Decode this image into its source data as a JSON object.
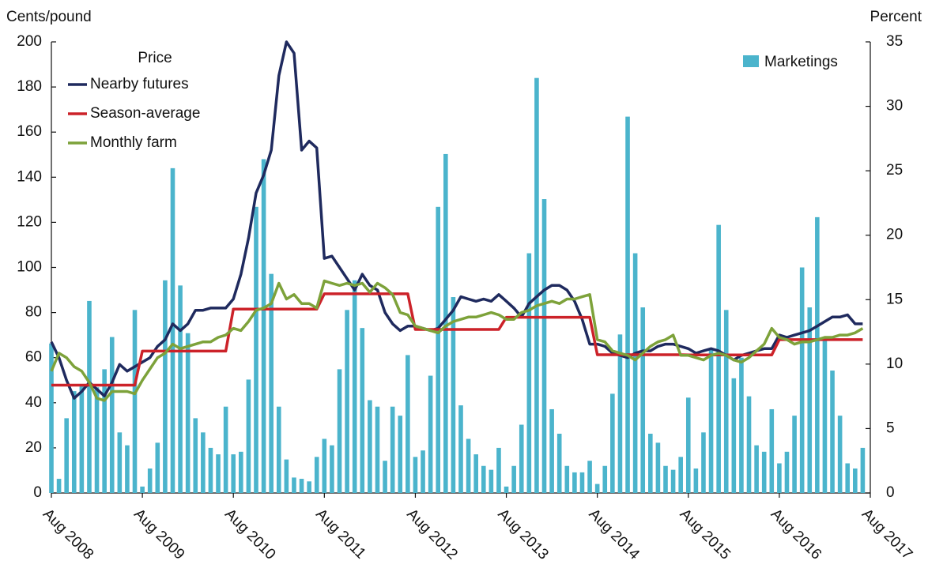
{
  "chart_data": {
    "type": "combo",
    "y_label": "Cents/pound",
    "y2_label": "Percent",
    "legend_title": "Price",
    "categories": [
      "Aug 2008",
      null,
      null,
      null,
      null,
      null,
      null,
      null,
      null,
      null,
      null,
      null,
      "Aug 2009",
      null,
      null,
      null,
      null,
      null,
      null,
      null,
      null,
      null,
      null,
      null,
      "Aug 2010",
      null,
      null,
      null,
      null,
      null,
      null,
      null,
      null,
      null,
      null,
      null,
      "Aug 2011",
      null,
      null,
      null,
      null,
      null,
      null,
      null,
      null,
      null,
      null,
      null,
      "Aug 2012",
      null,
      null,
      null,
      null,
      null,
      null,
      null,
      null,
      null,
      null,
      null,
      "Aug 2013",
      null,
      null,
      null,
      null,
      null,
      null,
      null,
      null,
      null,
      null,
      null,
      "Aug 2014",
      null,
      null,
      null,
      null,
      null,
      null,
      null,
      null,
      null,
      null,
      null,
      "Aug 2015",
      null,
      null,
      null,
      null,
      null,
      null,
      null,
      null,
      null,
      null,
      null,
      "Aug 2016",
      null,
      null,
      null,
      null,
      null,
      null,
      null,
      null,
      null,
      null,
      null,
      "Aug 2017"
    ],
    "ylim": [
      0,
      200
    ],
    "yticks": [
      0,
      20,
      40,
      60,
      80,
      100,
      120,
      140,
      160,
      180,
      200
    ],
    "y2lim": [
      0,
      35
    ],
    "y2ticks": [
      0,
      5,
      10,
      15,
      20,
      25,
      30,
      35
    ],
    "series": [
      {
        "name": "Marketings",
        "type": "bar",
        "axis": "y2",
        "color": "#4bb4cc",
        "values": [
          11.6,
          1.1,
          5.8,
          7.9,
          8.4,
          14.9,
          8.2,
          9.6,
          12.1,
          4.7,
          3.7,
          14.2,
          0.5,
          1.9,
          3.9,
          16.5,
          25.2,
          16.1,
          12.4,
          5.8,
          4.7,
          3.5,
          3.0,
          6.7,
          3.0,
          3.2,
          8.8,
          22.2,
          25.9,
          17.0,
          6.7,
          2.6,
          1.2,
          1.1,
          0.9,
          2.8,
          4.2,
          3.7,
          9.6,
          14.2,
          16.5,
          12.8,
          7.2,
          6.7,
          2.5,
          6.7,
          6.0,
          10.7,
          2.8,
          3.3,
          9.1,
          22.2,
          26.3,
          15.2,
          6.8,
          4.2,
          3.0,
          2.1,
          1.8,
          3.5,
          0.5,
          2.1,
          5.3,
          18.6,
          32.2,
          22.8,
          6.5,
          4.6,
          2.1,
          1.6,
          1.6,
          2.5,
          0.7,
          2.1,
          7.7,
          12.3,
          29.2,
          18.6,
          14.4,
          4.6,
          3.9,
          2.1,
          1.8,
          2.8,
          7.4,
          1.9,
          4.7,
          11.2,
          20.8,
          14.2,
          8.9,
          10.5,
          7.5,
          3.7,
          3.2,
          6.5,
          2.3,
          3.2,
          6.0,
          17.5,
          14.4,
          21.4,
          12.1,
          9.5,
          6.0,
          2.3,
          1.9,
          3.5,
          null
        ]
      },
      {
        "name": "Nearby futures",
        "type": "line",
        "color": "#1f2a5e",
        "values": [
          67,
          60,
          50,
          42,
          45,
          49,
          46,
          43,
          49,
          57,
          54,
          56,
          58,
          60,
          65,
          68,
          75,
          72,
          75,
          81,
          81,
          82,
          82,
          82,
          86,
          97,
          113,
          133,
          141,
          152,
          185,
          200,
          195,
          152,
          156,
          153,
          104,
          105,
          100,
          95,
          90,
          97,
          92,
          90,
          80,
          75,
          72,
          74,
          74,
          73,
          72,
          73,
          77,
          81,
          87,
          86,
          85,
          86,
          85,
          88,
          85,
          82,
          78,
          84,
          87,
          90,
          92,
          92,
          90,
          85,
          77,
          66,
          66,
          65,
          62,
          61,
          60,
          62,
          63,
          63,
          65,
          66,
          66,
          65,
          64,
          62,
          63,
          64,
          63,
          61,
          59,
          61,
          62,
          63,
          64,
          64,
          70,
          69,
          70,
          71,
          72,
          74,
          76,
          78,
          78,
          79,
          75,
          75,
          null
        ]
      },
      {
        "name": "Season-average",
        "type": "line",
        "color": "#cc2229",
        "values": [
          47.8,
          47.8,
          47.8,
          47.8,
          47.8,
          47.8,
          47.8,
          47.8,
          47.8,
          47.8,
          47.8,
          47.8,
          62.9,
          62.9,
          62.9,
          62.9,
          62.9,
          62.9,
          62.9,
          62.9,
          62.9,
          62.9,
          62.9,
          62.9,
          81.5,
          81.5,
          81.5,
          81.5,
          81.5,
          81.5,
          81.5,
          81.5,
          81.5,
          81.5,
          81.5,
          81.5,
          88.3,
          88.3,
          88.3,
          88.3,
          88.3,
          88.3,
          88.3,
          88.3,
          88.3,
          88.3,
          88.3,
          88.3,
          72.5,
          72.5,
          72.5,
          72.5,
          72.5,
          72.5,
          72.5,
          72.5,
          72.5,
          72.5,
          72.5,
          72.5,
          77.9,
          77.9,
          77.9,
          77.9,
          77.9,
          77.9,
          77.9,
          77.9,
          77.9,
          77.9,
          77.9,
          77.9,
          61.3,
          61.3,
          61.3,
          61.3,
          61.3,
          61.3,
          61.3,
          61.3,
          61.3,
          61.3,
          61.3,
          61.3,
          61.2,
          61.2,
          61.2,
          61.2,
          61.2,
          61.2,
          61.2,
          61.2,
          61.2,
          61.2,
          61.2,
          61.2,
          68.0,
          68.0,
          68.0,
          68.0,
          68.0,
          68.0,
          68.0,
          68.0,
          68.0,
          68.0,
          68.0,
          68.0,
          null
        ]
      },
      {
        "name": "Monthly farm",
        "type": "line",
        "color": "#7da23a",
        "values": [
          54,
          62,
          60,
          56,
          54,
          49,
          42,
          41,
          45,
          45,
          45,
          44,
          50,
          55,
          60,
          62,
          66,
          64,
          65,
          66,
          67,
          67,
          69,
          70,
          73,
          72,
          76,
          81,
          82,
          84,
          93,
          86,
          88,
          84,
          84,
          82,
          94,
          93,
          92,
          93,
          92,
          93,
          89,
          93,
          91,
          88,
          80,
          79,
          74,
          73,
          72,
          71,
          74,
          76,
          77,
          78,
          78,
          79,
          80,
          79,
          77,
          77,
          80,
          81,
          83,
          84,
          85,
          84,
          86,
          86,
          87,
          88,
          68,
          67,
          63,
          62,
          61,
          59,
          62,
          65,
          67,
          68,
          70,
          61,
          61,
          60,
          59,
          61,
          62,
          61,
          59,
          58,
          60,
          63,
          66,
          73,
          69,
          68,
          66,
          67,
          67,
          68,
          69,
          69,
          70,
          70,
          71,
          73,
          null
        ]
      }
    ]
  }
}
